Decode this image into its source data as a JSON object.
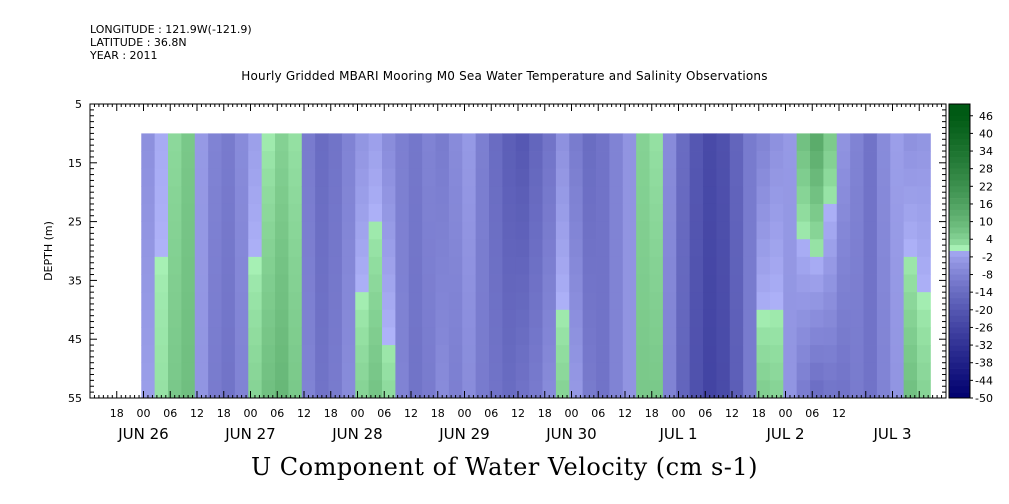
{
  "header": {
    "longitude": "LONGITUDE : 121.9W(-121.9)",
    "latitude": "LATITUDE : 36.8N",
    "year": "YEAR : 2011"
  },
  "chart_data": {
    "type": "heatmap",
    "title": "Hourly Gridded MBARI Mooring M0 Sea Water Temperature and Salinity Observations",
    "variable_label": "U Component of Water Velocity (cm s-1)",
    "ylabel": "DEPTH (m)",
    "ylim": [
      5,
      55
    ],
    "y_inverted": true,
    "y_ticks": [
      5,
      15,
      25,
      35,
      45,
      55
    ],
    "data_depth_range": [
      10,
      55
    ],
    "x_hour_tick_labels": [
      "18",
      "00",
      "06",
      "12",
      "18",
      "00",
      "06",
      "12",
      "18",
      "00",
      "06",
      "12",
      "18",
      "00",
      "06",
      "12",
      "18",
      "00",
      "06",
      "12",
      "18",
      "00",
      "06",
      "12",
      "18",
      "00",
      "06",
      "12"
    ],
    "x_day_labels": [
      "JUN 26",
      "JUN 27",
      "JUN 28",
      "JUN 29",
      "JUN 30",
      "JUL  1",
      "JUL  2",
      "JUL  3"
    ],
    "colorbar": {
      "levels": [
        46,
        40,
        34,
        28,
        22,
        16,
        10,
        4,
        -2,
        -8,
        -14,
        -20,
        -26,
        -32,
        -38,
        -44,
        -50
      ],
      "range": [
        -50,
        50
      ]
    },
    "columns": {
      "hours": [
        1,
        4,
        7,
        10,
        13,
        16,
        19,
        22,
        25,
        28,
        31,
        34,
        37,
        40,
        43,
        46,
        49,
        52,
        55,
        58,
        61,
        64,
        67,
        70,
        73,
        76,
        79,
        82,
        85,
        88,
        91,
        94,
        97,
        100,
        103,
        106,
        109,
        112,
        115,
        118,
        121,
        124,
        127,
        130,
        133,
        136,
        139,
        142,
        145,
        148,
        151,
        154,
        157,
        160,
        163,
        166,
        169,
        172,
        175
      ],
      "near_surface": [
        -5,
        0,
        3,
        6,
        -3,
        -8,
        -10,
        -6,
        -2,
        1,
        4,
        2,
        -10,
        -14,
        -12,
        -8,
        -4,
        -2,
        -6,
        -9,
        -11,
        -8,
        -10,
        -6,
        -3,
        -9,
        -14,
        -18,
        -20,
        -16,
        -12,
        -5,
        -10,
        -14,
        -12,
        -8,
        -4,
        4,
        2,
        -6,
        -14,
        -20,
        -24,
        -22,
        -16,
        -10,
        -8,
        -5,
        -3,
        8,
        14,
        6,
        -4,
        -8,
        -12,
        -6,
        -2,
        -5,
        -4
      ],
      "deep": [
        -2,
        2,
        6,
        8,
        -4,
        -10,
        -12,
        -8,
        4,
        8,
        10,
        6,
        -8,
        -12,
        -10,
        -6,
        4,
        7,
        3,
        -8,
        -12,
        -10,
        -6,
        -9,
        -6,
        -10,
        -12,
        -14,
        -12,
        -10,
        -6,
        4,
        -3,
        -10,
        -12,
        -8,
        -4,
        6,
        6,
        -8,
        -16,
        -22,
        -26,
        -24,
        -18,
        -10,
        5,
        4,
        -4,
        -10,
        -14,
        -12,
        -12,
        -10,
        -12,
        -8,
        -4,
        8,
        4
      ]
    }
  }
}
